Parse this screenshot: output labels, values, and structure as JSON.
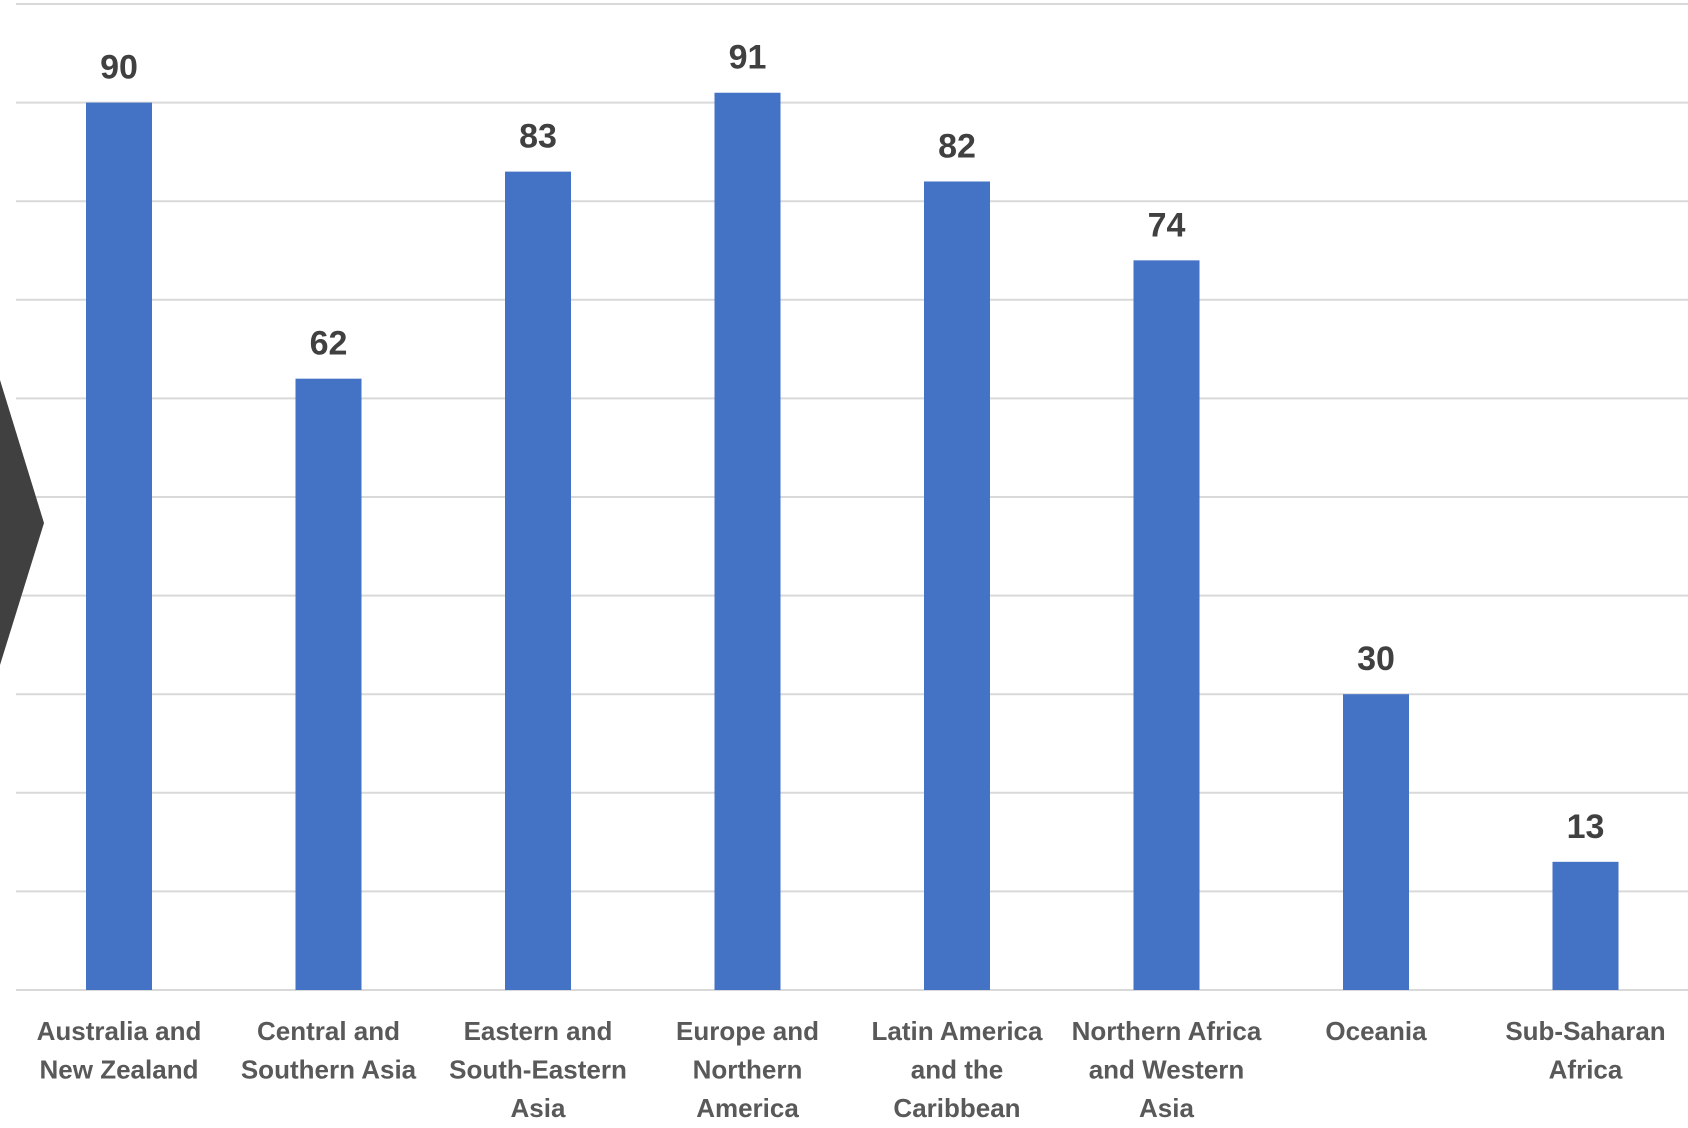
{
  "chart_data": {
    "type": "bar",
    "categories": [
      [
        "Australia and",
        "New Zealand"
      ],
      [
        "Central and",
        "Southern Asia"
      ],
      [
        "Eastern and",
        "South-Eastern",
        "Asia"
      ],
      [
        "Europe and",
        "Northern",
        "America"
      ],
      [
        "Latin America",
        "and the",
        "Caribbean"
      ],
      [
        "Northern Africa",
        "and Western",
        "Asia"
      ],
      [
        "Oceania"
      ],
      [
        "Sub-Saharan",
        "Africa"
      ]
    ],
    "values": [
      90,
      62,
      83,
      91,
      82,
      74,
      30,
      13
    ],
    "ylim": [
      0,
      100
    ],
    "grid_step": 10,
    "grid": true,
    "data_labels": true,
    "legend": "none",
    "colors": {
      "bar": "#4472c4",
      "grid": "#d9d9d9",
      "label": "#404040",
      "tick": "#595959",
      "arrow": "#404040"
    }
  }
}
